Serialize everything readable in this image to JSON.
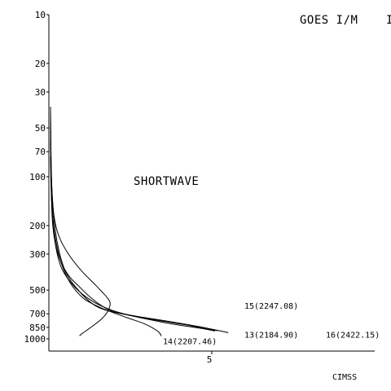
{
  "chart_data": {
    "type": "line",
    "title": "GOES I/M",
    "title_suffix": "I",
    "annotation": "SHORTWAVE",
    "credit": "CIMSS",
    "xlabel": "",
    "ylabel": "",
    "x_ticks": [
      {
        "value": 5,
        "label": "5"
      }
    ],
    "xlim": [
      0,
      10
    ],
    "y_scale": "log",
    "ylim": [
      10,
      1000
    ],
    "y_ticks": [
      {
        "value": 10,
        "label": "10"
      },
      {
        "value": 20,
        "label": "20"
      },
      {
        "value": 30,
        "label": "30"
      },
      {
        "value": 50,
        "label": "50"
      },
      {
        "value": 70,
        "label": "70"
      },
      {
        "value": 100,
        "label": "100"
      },
      {
        "value": 200,
        "label": "200"
      },
      {
        "value": 300,
        "label": "300"
      },
      {
        "value": 500,
        "label": "500"
      },
      {
        "value": 700,
        "label": "700"
      },
      {
        "value": 850,
        "label": "850"
      },
      {
        "value": 1000,
        "label": "1000"
      }
    ],
    "grid": false,
    "series": [
      {
        "name": "13(2184.90)",
        "label_anchor": {
          "x": 6.0,
          "p": 980
        },
        "points": [
          [
            0.05,
            37
          ],
          [
            0.06,
            60
          ],
          [
            0.08,
            100
          ],
          [
            0.12,
            150
          ],
          [
            0.25,
            250
          ],
          [
            0.5,
            380
          ],
          [
            0.9,
            500
          ],
          [
            1.35,
            610
          ],
          [
            1.8,
            670
          ],
          [
            2.5,
            715
          ],
          [
            3.5,
            770
          ],
          [
            4.6,
            840
          ],
          [
            5.4,
            905
          ],
          [
            5.5,
            920
          ]
        ]
      },
      {
        "name": "14(2207.46)",
        "label_anchor": {
          "x": 3.5,
          "p": 1075
        },
        "points": [
          [
            0.05,
            75
          ],
          [
            0.07,
            120
          ],
          [
            0.11,
            170
          ],
          [
            0.2,
            240
          ],
          [
            0.38,
            340
          ],
          [
            0.65,
            450
          ],
          [
            1.05,
            560
          ],
          [
            1.5,
            630
          ],
          [
            1.9,
            680
          ],
          [
            2.4,
            740
          ],
          [
            2.95,
            810
          ],
          [
            3.35,
            900
          ],
          [
            3.45,
            960
          ]
        ]
      },
      {
        "name": "15(2247.08)",
        "label_anchor": {
          "x": 6.0,
          "p": 650
        },
        "points": [
          [
            0.05,
            40
          ],
          [
            0.06,
            70
          ],
          [
            0.08,
            105
          ],
          [
            0.15,
            170
          ],
          [
            0.3,
            230
          ],
          [
            0.6,
            300
          ],
          [
            1.0,
            380
          ],
          [
            1.45,
            470
          ],
          [
            1.8,
            560
          ],
          [
            1.88,
            610
          ],
          [
            1.8,
            680
          ],
          [
            1.6,
            760
          ],
          [
            1.25,
            860
          ],
          [
            0.98,
            940
          ],
          [
            0.95,
            960
          ]
        ]
      },
      {
        "name": "16(2422.15)",
        "label_anchor": {
          "x": 8.5,
          "p": 980
        },
        "points": [
          [
            0.05,
            60
          ],
          [
            0.07,
            110
          ],
          [
            0.12,
            200
          ],
          [
            0.28,
            300
          ],
          [
            0.58,
            400
          ],
          [
            0.95,
            480
          ],
          [
            1.3,
            560
          ],
          [
            1.65,
            630
          ],
          [
            2.0,
            680
          ],
          [
            2.8,
            740
          ],
          [
            3.8,
            810
          ],
          [
            4.8,
            870
          ],
          [
            5.1,
            895
          ]
        ]
      },
      {
        "name": "",
        "points": [
          [
            0.05,
            45
          ],
          [
            0.07,
            90
          ],
          [
            0.1,
            150
          ],
          [
            0.2,
            260
          ],
          [
            0.4,
            370
          ],
          [
            0.8,
            480
          ],
          [
            1.3,
            580
          ],
          [
            1.8,
            650
          ],
          [
            2.3,
            700
          ],
          [
            3.2,
            760
          ],
          [
            4.2,
            820
          ],
          [
            4.95,
            875
          ],
          [
            5.2,
            890
          ]
        ]
      }
    ]
  }
}
